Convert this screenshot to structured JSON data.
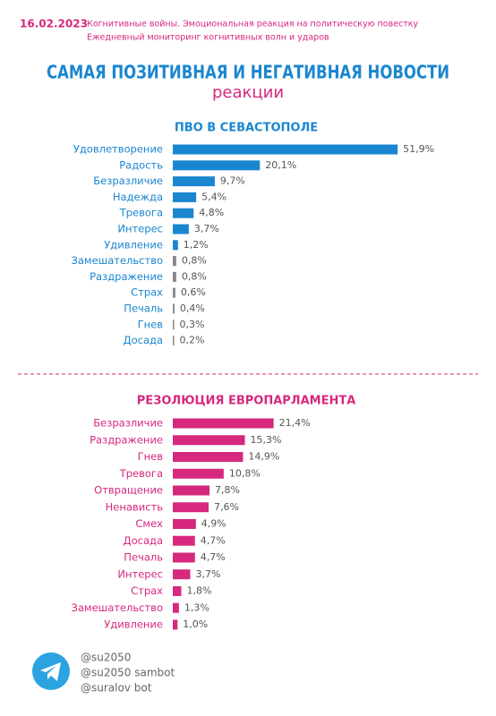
{
  "header": {
    "date": "16.02.2023",
    "line1": "Когнитивные войны. Эмоциональная реакция на политическую повестку",
    "line2": "Ежедневный мониторинг когнитивных волн и ударов",
    "title": "САМАЯ ПОЗИТИВНАЯ И НЕГАТИВНАЯ НОВОСТИ",
    "subtitle": "реакции"
  },
  "chart_data": [
    {
      "type": "bar",
      "orientation": "horizontal",
      "title": "ПВО В СЕВАСТОПОЛЕ",
      "title_color": "#1a86d0",
      "categories": [
        "Удовлетворение",
        "Радость",
        "Безразличие",
        "Надежда",
        "Тревога",
        "Интерес",
        "Удивление",
        "Замешательство",
        "Раздражение",
        "Страх",
        "Печаль",
        "Гнев",
        "Досада"
      ],
      "values": [
        51.9,
        20.1,
        9.7,
        5.4,
        4.8,
        3.7,
        1.2,
        0.8,
        0.8,
        0.6,
        0.4,
        0.3,
        0.2
      ],
      "value_labels": [
        "51,9%",
        "20,1%",
        "9,7%",
        "5,4%",
        "4,8%",
        "3,7%",
        "1,2%",
        "0,8%",
        "0,8%",
        "0,6%",
        "0,4%",
        "0,3%",
        "0,2%"
      ],
      "colors": [
        "#1a86d0",
        "#1a86d0",
        "#1a86d0",
        "#1a86d0",
        "#1a86d0",
        "#1a86d0",
        "#1a86d0",
        "#888888",
        "#888888",
        "#888888",
        "#888888",
        "#888888",
        "#888888"
      ],
      "label_color": "#1a86d0",
      "xlim": [
        0,
        62
      ]
    },
    {
      "type": "bar",
      "orientation": "horizontal",
      "title": "РЕЗОЛЮЦИЯ ЕВРОПАРЛАМЕНТА",
      "title_color": "#d6287e",
      "categories": [
        "Безразличие",
        "Раздражение",
        "Гнев",
        "Тревога",
        "Отвращение",
        "Ненависть",
        "Смех",
        "Досада",
        "Печаль",
        "Интерес",
        "Страх",
        "Замешательство",
        "Удивление"
      ],
      "values": [
        21.4,
        15.3,
        14.9,
        10.8,
        7.8,
        7.6,
        4.9,
        4.7,
        4.7,
        3.7,
        1.8,
        1.3,
        1.0
      ],
      "value_labels": [
        "21,4%",
        "15,3%",
        "14,9%",
        "10,8%",
        "7,8%",
        "7,6%",
        "4,9%",
        "4,7%",
        "4,7%",
        "3,7%",
        "1,8%",
        "1,3%",
        "1,0%"
      ],
      "colors": [
        "#d6287e",
        "#d6287e",
        "#d6287e",
        "#d6287e",
        "#d6287e",
        "#d6287e",
        "#d6287e",
        "#d6287e",
        "#d6287e",
        "#d6287e",
        "#d6287e",
        "#d6287e",
        "#d6287e"
      ],
      "label_color": "#d6287e",
      "xlim": [
        0,
        57
      ]
    }
  ],
  "footer": {
    "handles": [
      "@su2050",
      "@su2050 sambot",
      "@suralov bot"
    ]
  }
}
